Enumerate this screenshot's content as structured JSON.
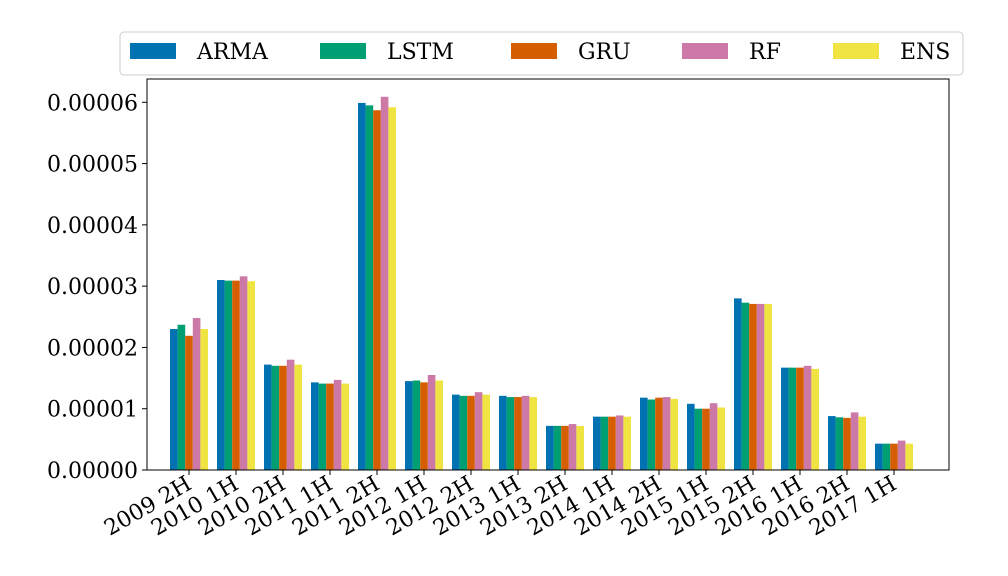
{
  "chart_data": {
    "type": "bar",
    "title": "",
    "xlabel": "",
    "ylabel": "",
    "ylim": [
      0,
      6.38e-05
    ],
    "yticks": [
      "0.00000",
      "0.00001",
      "0.00002",
      "0.00003",
      "0.00004",
      "0.00005",
      "0.00006"
    ],
    "ytick_values": [
      0,
      1e-05,
      2e-05,
      3e-05,
      4e-05,
      5e-05,
      6e-05
    ],
    "categories": [
      "2009 2H",
      "2010 1H",
      "2010 2H",
      "2011 1H",
      "2011 2H",
      "2012 1H",
      "2012 2H",
      "2013 1H",
      "2013 2H",
      "2014 1H",
      "2014 2H",
      "2015 1H",
      "2015 2H",
      "2016 1H",
      "2016 2H",
      "2017 1H"
    ],
    "legend_position": "top",
    "grid": false,
    "series": [
      {
        "name": "ARMA",
        "color": "#0072B2",
        "values": [
          2.3e-05,
          3.1e-05,
          1.72e-05,
          1.43e-05,
          5.99e-05,
          1.45e-05,
          1.23e-05,
          1.21e-05,
          7.2e-06,
          8.7e-06,
          1.18e-05,
          1.08e-05,
          2.8e-05,
          1.67e-05,
          8.8e-06,
          4.3e-06
        ]
      },
      {
        "name": "LSTM",
        "color": "#009E73",
        "values": [
          2.37e-05,
          3.09e-05,
          1.7e-05,
          1.41e-05,
          5.95e-05,
          1.46e-05,
          1.21e-05,
          1.19e-05,
          7.2e-06,
          8.7e-06,
          1.15e-05,
          1e-05,
          2.73e-05,
          1.67e-05,
          8.6e-06,
          4.3e-06
        ]
      },
      {
        "name": "GRU",
        "color": "#D55E00",
        "values": [
          2.19e-05,
          3.09e-05,
          1.7e-05,
          1.41e-05,
          5.87e-05,
          1.43e-05,
          1.21e-05,
          1.19e-05,
          7.2e-06,
          8.7e-06,
          1.18e-05,
          1e-05,
          2.71e-05,
          1.67e-05,
          8.5e-06,
          4.3e-06
        ]
      },
      {
        "name": "RF",
        "color": "#CC79A7",
        "values": [
          2.48e-05,
          3.16e-05,
          1.8e-05,
          1.47e-05,
          6.09e-05,
          1.55e-05,
          1.27e-05,
          1.21e-05,
          7.5e-06,
          8.9e-06,
          1.19e-05,
          1.09e-05,
          2.71e-05,
          1.7e-05,
          9.4e-06,
          4.8e-06
        ]
      },
      {
        "name": "ENS",
        "color": "#F0E442",
        "values": [
          2.3e-05,
          3.08e-05,
          1.72e-05,
          1.41e-05,
          5.92e-05,
          1.46e-05,
          1.23e-05,
          1.19e-05,
          7.2e-06,
          8.7e-06,
          1.16e-05,
          1.02e-05,
          2.71e-05,
          1.65e-05,
          8.7e-06,
          4.3e-06
        ]
      }
    ]
  }
}
